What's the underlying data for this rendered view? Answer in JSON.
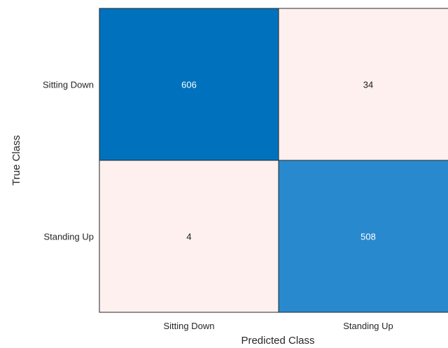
{
  "chart_data": {
    "type": "heatmap",
    "title": "",
    "xlabel": "Predicted Class",
    "ylabel": "True Class",
    "x_categories": [
      "Sitting Down",
      "Standing Up"
    ],
    "y_categories": [
      "Sitting Down",
      "Standing Up"
    ],
    "values": [
      [
        606,
        34
      ],
      [
        4,
        508
      ]
    ],
    "colors": {
      "correct_high": "#0072bd",
      "correct_low": "#2989ce",
      "incorrect": "#fdf0ee",
      "text_on_dark": "#ffffff",
      "text_on_light": "#1a1a1a",
      "grid": "#262626"
    }
  }
}
